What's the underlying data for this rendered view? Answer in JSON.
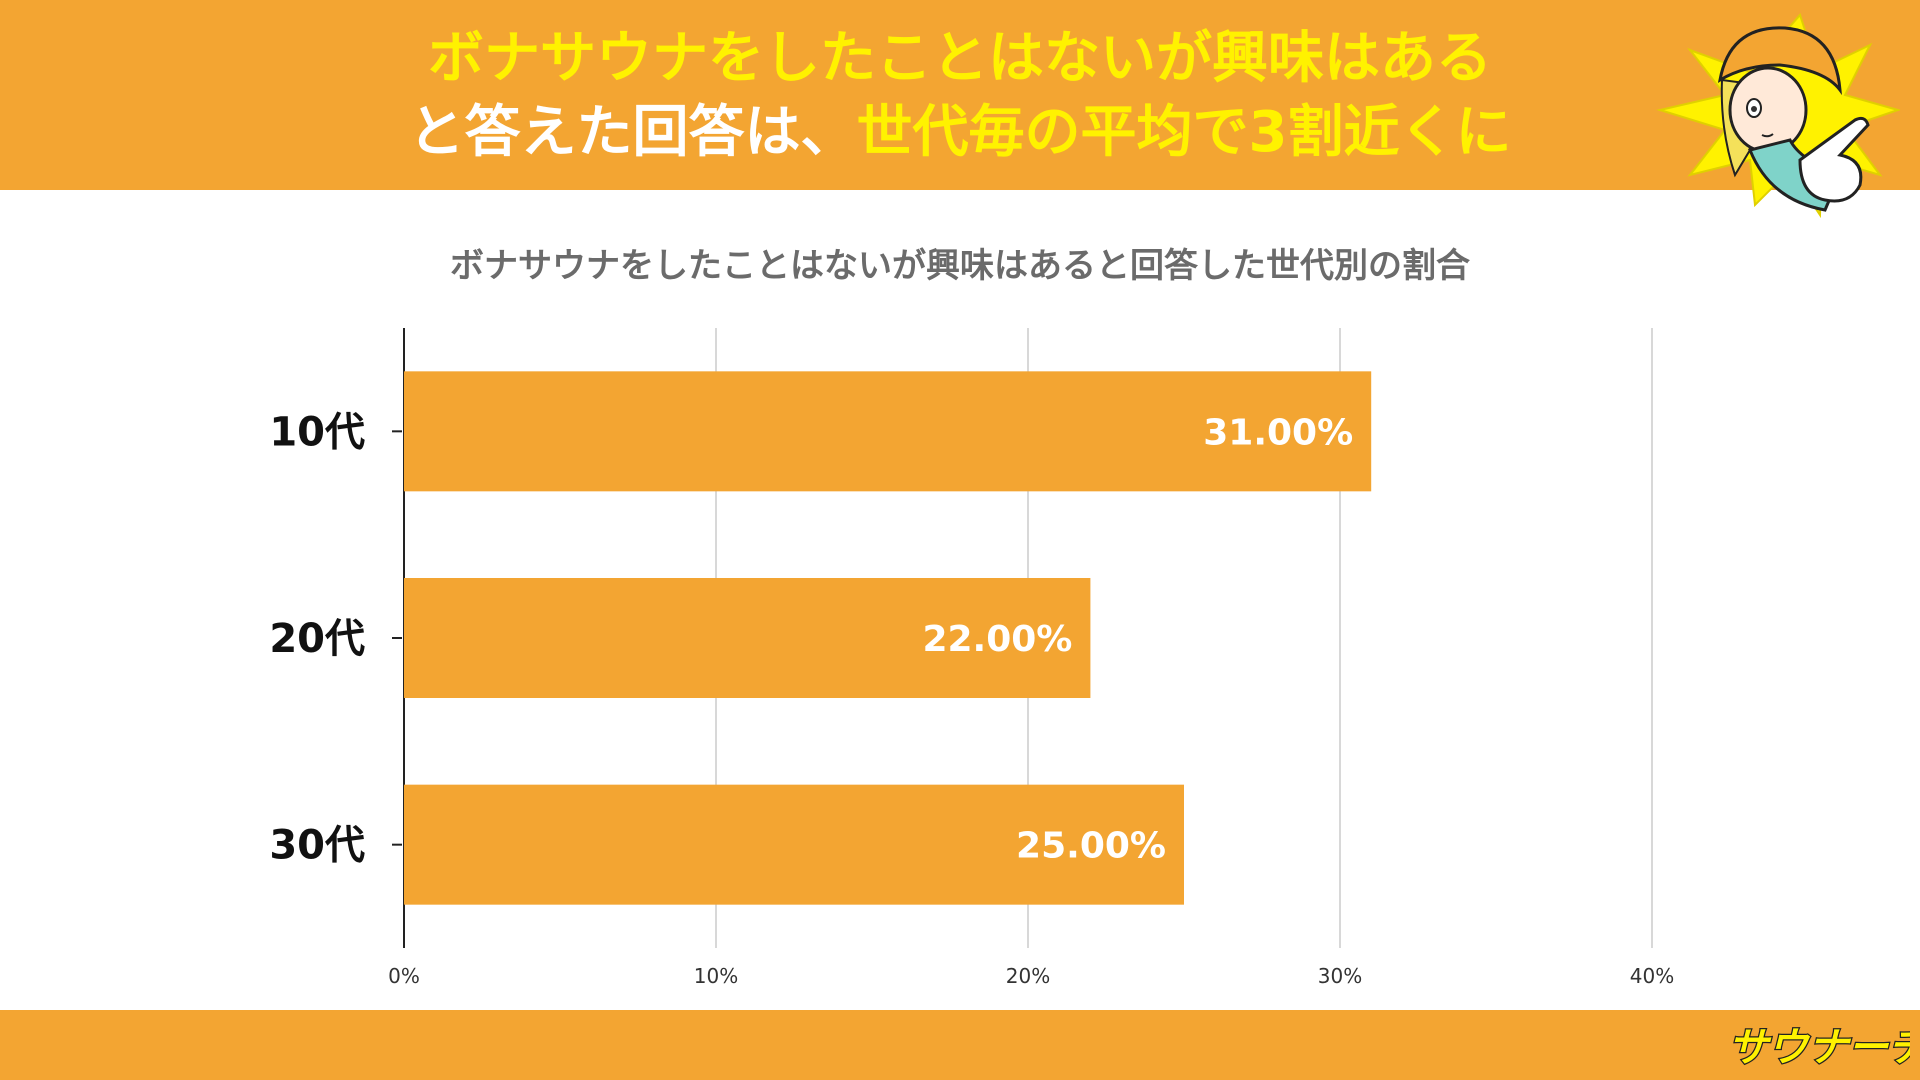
{
  "header": {
    "line1": "ボナサウナをしたことはないが興味はある",
    "line2_plain": "と答えた回答は、",
    "line2_highlight": "世代毎の平均で3割近くに"
  },
  "brand": {
    "logo_text": "サウナーチ"
  },
  "colors": {
    "accent": "#F3A532",
    "highlight": "#FFF200",
    "bar": "#F3A532"
  },
  "chart_data": {
    "type": "bar",
    "orientation": "horizontal",
    "title": "ボナサウナをしたことはないが興味はあると回答した世代別の割合",
    "categories": [
      "10代",
      "20代",
      "30代"
    ],
    "values": [
      31,
      22,
      25
    ],
    "data_labels": [
      "31.00%",
      "22.00%",
      "25.00%"
    ],
    "xlim": [
      0,
      40
    ],
    "x_ticks": [
      0,
      10,
      20,
      30,
      40
    ],
    "x_tick_labels": [
      "0%",
      "10%",
      "20%",
      "30%",
      "40%"
    ],
    "grid": true,
    "legend": "none"
  }
}
